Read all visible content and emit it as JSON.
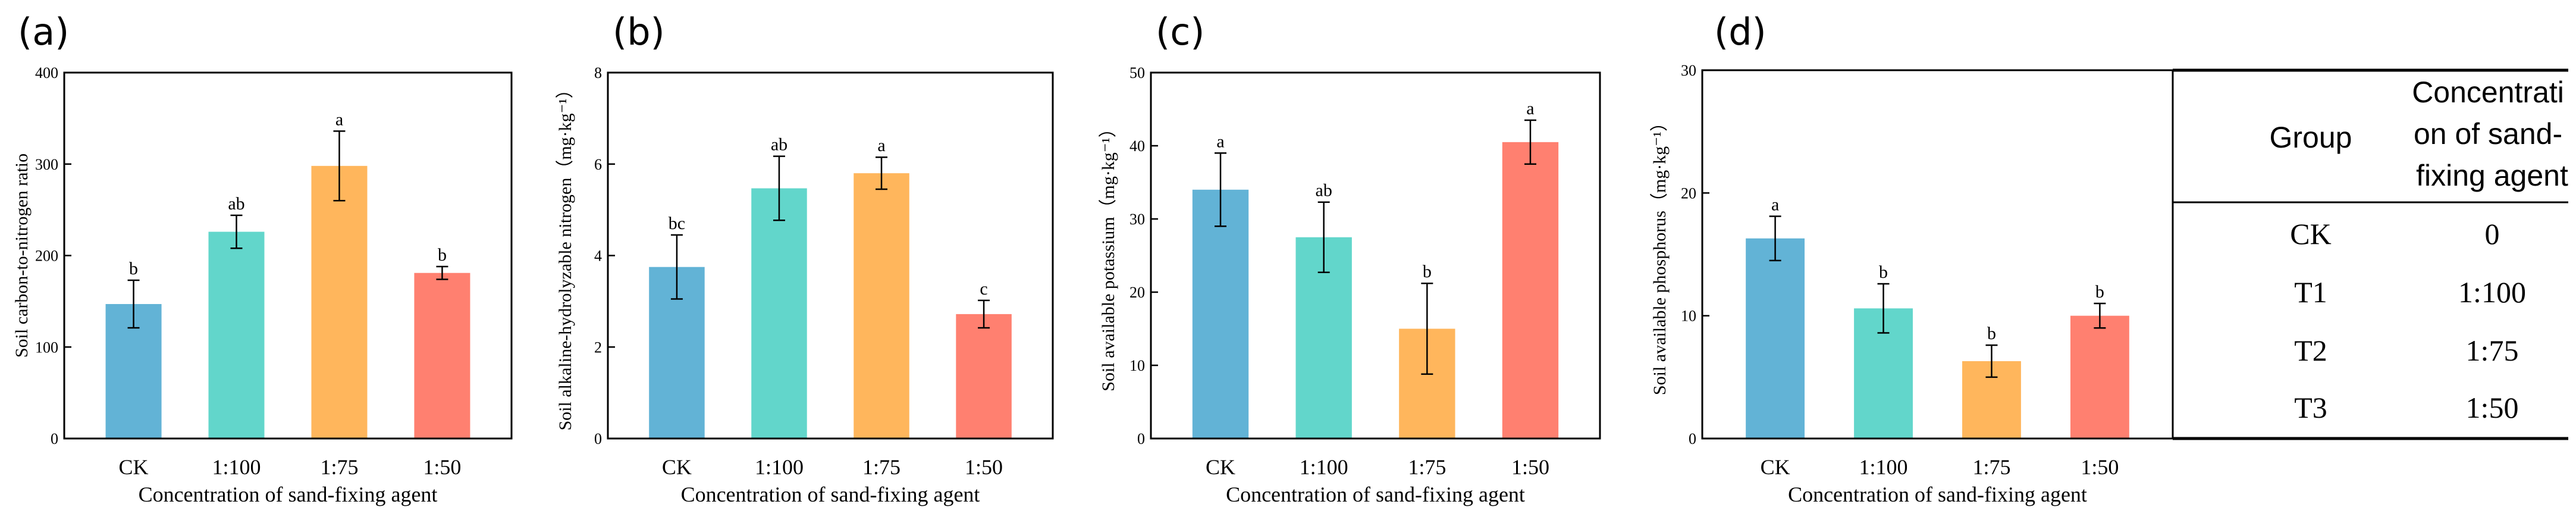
{
  "colors": [
    "#62b3d6",
    "#62d6cb",
    "#ffb65c",
    "#ff8070"
  ],
  "chart_data": [
    {
      "type": "bar",
      "panel": "(a)",
      "categories": [
        "CK",
        "1:100",
        "1:75",
        "1:50"
      ],
      "values": [
        147,
        226,
        298,
        181
      ],
      "errors": [
        26,
        18,
        38,
        7
      ],
      "letters": [
        "b",
        "ab",
        "a",
        "b"
      ],
      "xlabel": "Concentration of sand-fixing agent",
      "ylabel": "Soil carbon-to-nitrogen ratio",
      "ylim": [
        0,
        400
      ],
      "yticks": [
        0,
        100,
        200,
        300,
        400
      ],
      "grid": false
    },
    {
      "type": "bar",
      "panel": "(b)",
      "categories": [
        "CK",
        "1:100",
        "1:75",
        "1:50"
      ],
      "values": [
        3.75,
        5.47,
        5.8,
        2.72
      ],
      "errors": [
        0.7,
        0.7,
        0.35,
        0.3
      ],
      "letters": [
        "bc",
        "ab",
        "a",
        "c"
      ],
      "xlabel": "Concentration of sand-fixing agent",
      "ylabel": "Soil alkaline-hydrolyzable nitrogen（mg·kg⁻¹）",
      "ylim": [
        0,
        8
      ],
      "yticks": [
        0,
        2,
        4,
        6,
        8
      ],
      "grid": false
    },
    {
      "type": "bar",
      "panel": "(c)",
      "categories": [
        "CK",
        "1:100",
        "1:75",
        "1:50"
      ],
      "values": [
        34,
        27.5,
        15,
        40.5
      ],
      "errors": [
        5,
        4.8,
        6.2,
        3
      ],
      "letters": [
        "a",
        "ab",
        "b",
        "a"
      ],
      "xlabel": "Concentration of sand-fixing agent",
      "ylabel": "Soil available potassium（mg·kg⁻¹）",
      "ylim": [
        0,
        50
      ],
      "yticks": [
        0,
        10,
        20,
        30,
        40,
        50
      ],
      "grid": false
    },
    {
      "type": "bar",
      "panel": "(d)",
      "categories": [
        "CK",
        "1:100",
        "1:75",
        "1:50"
      ],
      "values": [
        16.3,
        10.6,
        6.3,
        10
      ],
      "errors": [
        1.8,
        2,
        1.3,
        1
      ],
      "letters": [
        "a",
        "b",
        "b",
        "b"
      ],
      "xlabel": "Concentration of sand-fixing agent",
      "ylabel": "Soil available phosphorus（mg·kg⁻¹）",
      "ylim": [
        0,
        30
      ],
      "yticks": [
        0,
        10,
        20,
        30
      ],
      "grid": false
    }
  ],
  "table": {
    "headers": [
      "Group",
      "Concentrati on of sand- fixing agent"
    ],
    "header_lines": [
      "Concentrati",
      "on of sand-",
      "fixing agent"
    ],
    "rows": [
      [
        "CK",
        "0"
      ],
      [
        "T1",
        "1:100"
      ],
      [
        "T2",
        "1:75"
      ],
      [
        "T3",
        "1:50"
      ]
    ]
  }
}
